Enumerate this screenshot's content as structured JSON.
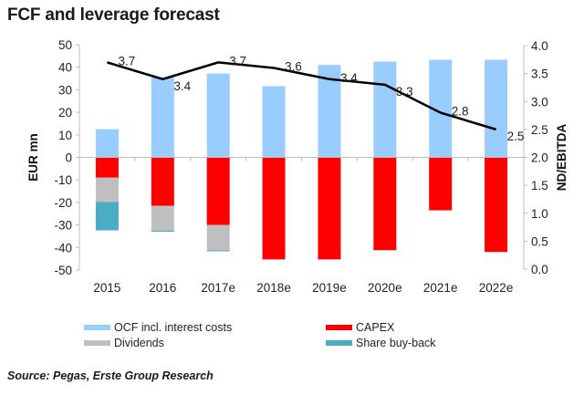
{
  "chart_data": {
    "type": "bar",
    "title": "FCF and leverage forecast",
    "categories": [
      "2015",
      "2016",
      "2017e",
      "2018e",
      "2019e",
      "2020e",
      "2021e",
      "2022e"
    ],
    "stacked": true,
    "series": [
      {
        "name": "OCF incl. interest costs",
        "axis": "left",
        "color": "#99CCFF",
        "values": [
          12.5,
          35.5,
          37.2,
          31.6,
          41.0,
          42.5,
          43.3,
          43.3
        ]
      },
      {
        "name": "CAPEX",
        "axis": "left",
        "color": "#FF0000",
        "values": [
          -9.0,
          -21.5,
          -30.0,
          -45.3,
          -45.3,
          -41.2,
          -23.5,
          -42.0
        ]
      },
      {
        "name": "Dividends",
        "axis": "left",
        "color": "#BFBFBF",
        "values": [
          -10.8,
          -11.0,
          -11.3,
          0,
          0,
          0,
          0,
          0
        ]
      },
      {
        "name": "Share buy-back",
        "axis": "left",
        "color": "#4BACC6",
        "values": [
          -12.6,
          -0.5,
          -0.3,
          0,
          0,
          0,
          0,
          0
        ]
      }
    ],
    "line_series": {
      "name": "ND/EBITDA",
      "axis": "right",
      "color": "#000000",
      "values": [
        3.7,
        3.4,
        3.7,
        3.6,
        3.4,
        3.3,
        2.8,
        2.5
      ],
      "labels": [
        "3.7",
        "3.4",
        "3.7",
        "3.6",
        "3.4",
        "3.3",
        "2.8",
        "2.5"
      ]
    },
    "ylabel": "EUR mn",
    "ylim": [
      -50,
      50
    ],
    "yticks": [
      "50",
      "40",
      "30",
      "20",
      "10",
      "0",
      "-10",
      "-20",
      "-30",
      "-40",
      "-50"
    ],
    "y2label": "ND/EBITDA",
    "y2lim": [
      0.0,
      4.0
    ],
    "y2ticks": [
      "4.0",
      "3.5",
      "3.0",
      "2.5",
      "2.0",
      "1.5",
      "1.0",
      "0.5",
      "0.0"
    ],
    "grid": false,
    "legend_position": "bottom"
  },
  "legend": [
    {
      "label": "OCF incl. interest costs",
      "color": "#99CCFF"
    },
    {
      "label": "CAPEX",
      "color": "#FF0000"
    },
    {
      "label": "Dividends",
      "color": "#BFBFBF"
    },
    {
      "label": "Share buy-back",
      "color": "#4BACC6"
    }
  ],
  "source": "Source: Pegas, Erste Group Research"
}
